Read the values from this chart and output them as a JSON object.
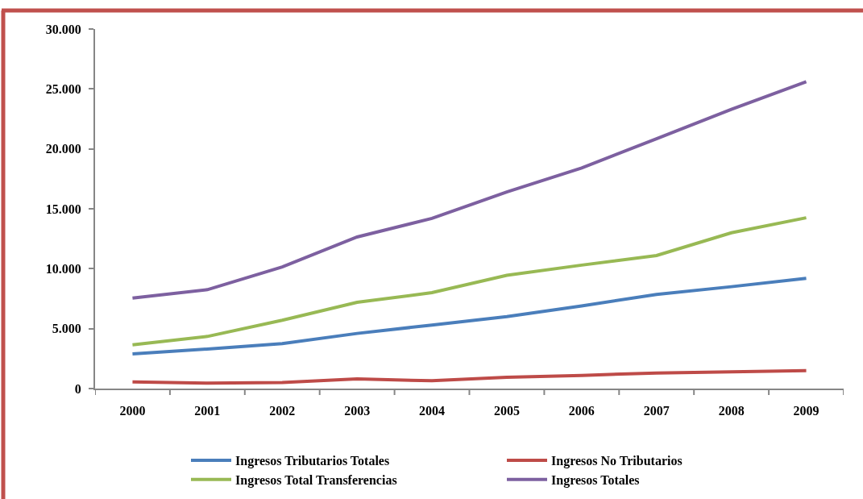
{
  "chart_data": {
    "type": "line",
    "categories": [
      "2000",
      "2001",
      "2002",
      "2003",
      "2004",
      "2005",
      "2006",
      "2007",
      "2008",
      "2009"
    ],
    "series": [
      {
        "name": "Ingresos Tributarios Totales",
        "color": "#4a7ebb",
        "values": [
          2900,
          3300,
          3750,
          4600,
          5300,
          6000,
          6900,
          7850,
          8500,
          9200
        ]
      },
      {
        "name": "Ingresos No Tributarios",
        "color": "#be4b48",
        "values": [
          550,
          450,
          500,
          800,
          650,
          950,
          1100,
          1300,
          1400,
          1500
        ]
      },
      {
        "name": "Ingresos Total Transferencias",
        "color": "#98b954",
        "values": [
          3650,
          4350,
          5700,
          7200,
          8000,
          9450,
          10300,
          11100,
          13000,
          14250
        ]
      },
      {
        "name": "Ingresos Totales",
        "color": "#7d60a0",
        "values": [
          7550,
          8250,
          10150,
          12650,
          14200,
          16400,
          18400,
          20850,
          23300,
          25600
        ]
      }
    ],
    "ylim": [
      0,
      30000
    ],
    "yticks": [
      0,
      {
        "value": 5000,
        "label": "5.000"
      },
      {
        "value": 10000,
        "label": "10.000"
      },
      {
        "value": 15000,
        "label": "15.000"
      },
      {
        "value": 20000,
        "label": "20.000"
      },
      {
        "value": 25000,
        "label": "25.000"
      },
      {
        "value": 30000,
        "label": "30.000"
      }
    ],
    "grid": false,
    "legend": "bottom",
    "marker": "none",
    "line_style": "solid"
  }
}
